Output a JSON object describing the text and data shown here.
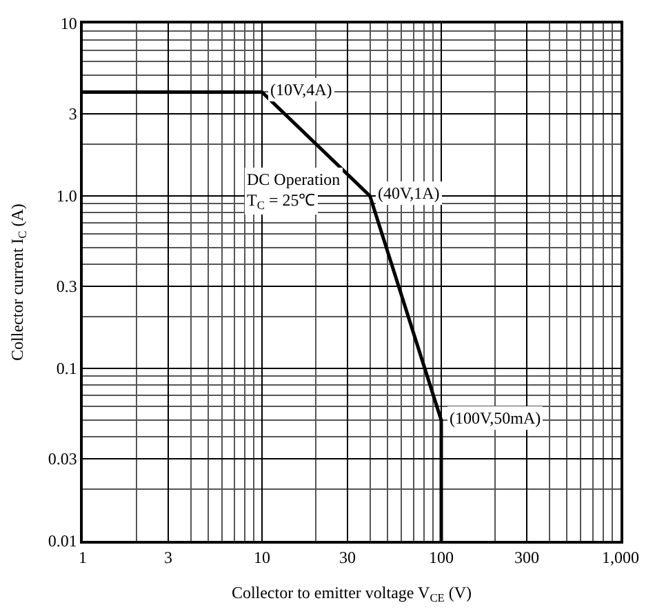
{
  "chart_data": {
    "type": "line",
    "xlabel": "Collector to emitter voltage V$_{CE}$ (V)",
    "ylabel": "Collector current I$_{C}$ (A)",
    "x": [
      1,
      10,
      40,
      100,
      100
    ],
    "series": [
      {
        "color": "#000000",
        "values": [
          4,
          4,
          1,
          0.05,
          0.01
        ]
      }
    ],
    "log": "xy",
    "grid": true,
    "xlim": [
      1,
      1000
    ],
    "xticks": [
      1,
      3,
      10,
      30,
      100,
      300,
      {
        "value": 1000,
        "label": "1,000"
      }
    ],
    "ylim": [
      0.01,
      10
    ],
    "yticks": [
      0.01,
      0.03,
      0.1,
      0.3,
      {
        "value": 1,
        "label": "1.0"
      },
      3,
      10
    ],
    "annotations": [
      {
        "text": "(10V,4A)",
        "x": 10,
        "y": 4
      },
      {
        "text": "(40V,1A)",
        "x": 40,
        "y": 1
      },
      {
        "text": "(100V,50mA)",
        "x": 100,
        "y": 0.05
      },
      "DC Operation",
      "T$_{C}$ = 25℃"
    ]
  }
}
